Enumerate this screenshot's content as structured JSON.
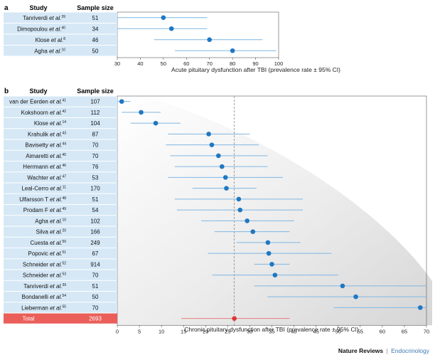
{
  "panel_a": {
    "label": "a",
    "col_study": "Study",
    "col_sample": "Sample size",
    "xlabel": "Acute pituitary dysfunction after TBI (prevalence rate ± 95% CI)"
  },
  "panel_b": {
    "label": "b",
    "col_study": "Study",
    "col_sample": "Sample size",
    "xlabel": "Chronic pituitary dysfunction after TBI (prevalence rate ± 95% CI)",
    "total_label": "Total",
    "total_n": "2693"
  },
  "footer": {
    "publisher": "Nature Reviews",
    "separator": "|",
    "journal": "Endocrinology"
  },
  "colors": {
    "row_fill": "#d6e8f6",
    "point": "#1f78c1",
    "ci_line": "#7fb6e3",
    "total_fill": "#ea5f5a",
    "total_point": "#d93838",
    "total_ci": "#e77e7a"
  },
  "chart_data": [
    {
      "type": "forest",
      "title": "a",
      "xlabel": "Acute pituitary dysfunction after TBI (prevalence rate ± 95% CI)",
      "xlim": [
        30,
        100
      ],
      "xticks": [
        "30",
        "40",
        "50",
        "60",
        "70",
        "80",
        "90",
        "100"
      ],
      "studies": [
        {
          "name": "Tanriverdi ",
          "etal": "et al.",
          "ref": "39",
          "n": "51",
          "estimate": 50,
          "ci": [
            30,
            69
          ]
        },
        {
          "name": "Dimopoulou ",
          "etal": "et al.",
          "ref": "40",
          "n": "34",
          "estimate": 53.5,
          "ci": [
            30,
            69
          ]
        },
        {
          "name": "Klose ",
          "etal": "et al.",
          "ref": "8",
          "n": "46",
          "estimate": 70,
          "ci": [
            46,
            93
          ]
        },
        {
          "name": "Agha ",
          "etal": "et al.",
          "ref": "10",
          "n": "50",
          "estimate": 80,
          "ci": [
            55,
            99
          ]
        }
      ]
    },
    {
      "type": "forest",
      "title": "b",
      "xlabel": "Chronic pituitary dysfunction after TBI (prevalence rate ± 95% CI)",
      "xlim": [
        0,
        70
      ],
      "xticks": [
        "0",
        "5",
        "10",
        "15",
        "20",
        "25",
        "30",
        "35",
        "40",
        "45",
        "50",
        "55",
        "60",
        "65",
        "70"
      ],
      "reference_line": 26.5,
      "studies": [
        {
          "name": "van der Eerden ",
          "etal": "et al.",
          "ref": "41",
          "n": "107",
          "estimate": 1,
          "ci": [
            0,
            3
          ]
        },
        {
          "name": "Kokshoorn ",
          "etal": "et al.",
          "ref": "42",
          "n": "112",
          "estimate": 5.4,
          "ci": [
            1,
            9.8
          ]
        },
        {
          "name": "Klose ",
          "etal": "et al.",
          "ref": "14",
          "n": "104",
          "estimate": 8.7,
          "ci": [
            3,
            14.3
          ]
        },
        {
          "name": "Krahulik ",
          "etal": "et al.",
          "ref": "43",
          "n": "87",
          "estimate": 20.7,
          "ci": [
            11.5,
            30
          ]
        },
        {
          "name": "Bavisetty ",
          "etal": "et al.",
          "ref": "44",
          "n": "70",
          "estimate": 21.4,
          "ci": [
            11,
            32
          ]
        },
        {
          "name": "Aimaretti ",
          "etal": "et al.",
          "ref": "45",
          "n": "70",
          "estimate": 22.9,
          "ci": [
            12,
            34
          ]
        },
        {
          "name": "Herrmann ",
          "etal": "et al.",
          "ref": "46",
          "n": "76",
          "estimate": 23.7,
          "ci": [
            13,
            34
          ]
        },
        {
          "name": "Wachter ",
          "etal": "et al.",
          "ref": "47",
          "n": "53",
          "estimate": 24.5,
          "ci": [
            11.5,
            37.5
          ]
        },
        {
          "name": "Leal-Cerro ",
          "etal": "et al.",
          "ref": "11",
          "n": "170",
          "estimate": 24.7,
          "ci": [
            17,
            31.5
          ]
        },
        {
          "name": "Ulfarsson T ",
          "etal": "et al.",
          "ref": "48",
          "n": "51",
          "estimate": 27.5,
          "ci": [
            13,
            42
          ]
        },
        {
          "name": "Prodam F ",
          "etal": "et al.",
          "ref": "49",
          "n": "54",
          "estimate": 27.8,
          "ci": [
            13.5,
            42
          ]
        },
        {
          "name": "Agha ",
          "etal": "et al.",
          "ref": "10",
          "n": "102",
          "estimate": 29.4,
          "ci": [
            19,
            40
          ]
        },
        {
          "name": "Silva ",
          "etal": "et al.",
          "ref": "20",
          "n": "166",
          "estimate": 30.7,
          "ci": [
            22,
            39
          ]
        },
        {
          "name": "Cuesta ",
          "etal": "et al.",
          "ref": "50",
          "n": "249",
          "estimate": 34.1,
          "ci": [
            27,
            41.5
          ]
        },
        {
          "name": "Popovic ",
          "etal": "et al.",
          "ref": "51",
          "n": "67",
          "estimate": 34.3,
          "ci": [
            20.5,
            48.5
          ]
        },
        {
          "name": "Schneider ",
          "etal": "et al.",
          "ref": "52",
          "n": "914",
          "estimate": 35,
          "ci": [
            31,
            39
          ]
        },
        {
          "name": "Schneider ",
          "etal": "et al.",
          "ref": "53",
          "n": "70",
          "estimate": 35.7,
          "ci": [
            21.5,
            50
          ]
        },
        {
          "name": "Tanriverdi ",
          "etal": "et al.",
          "ref": "39",
          "n": "51",
          "estimate": 51,
          "ci": [
            31,
            70
          ]
        },
        {
          "name": "Bondanelli ",
          "etal": "et al.",
          "ref": "54",
          "n": "50",
          "estimate": 54,
          "ci": [
            34,
            70
          ]
        },
        {
          "name": "Lieberman ",
          "etal": "et al.",
          "ref": "55",
          "n": "70",
          "estimate": 68.6,
          "ci": [
            49,
            70
          ]
        }
      ],
      "total": {
        "label": "Total",
        "n": "2693",
        "estimate": 26.5,
        "ci": [
          14.5,
          39
        ]
      }
    }
  ]
}
